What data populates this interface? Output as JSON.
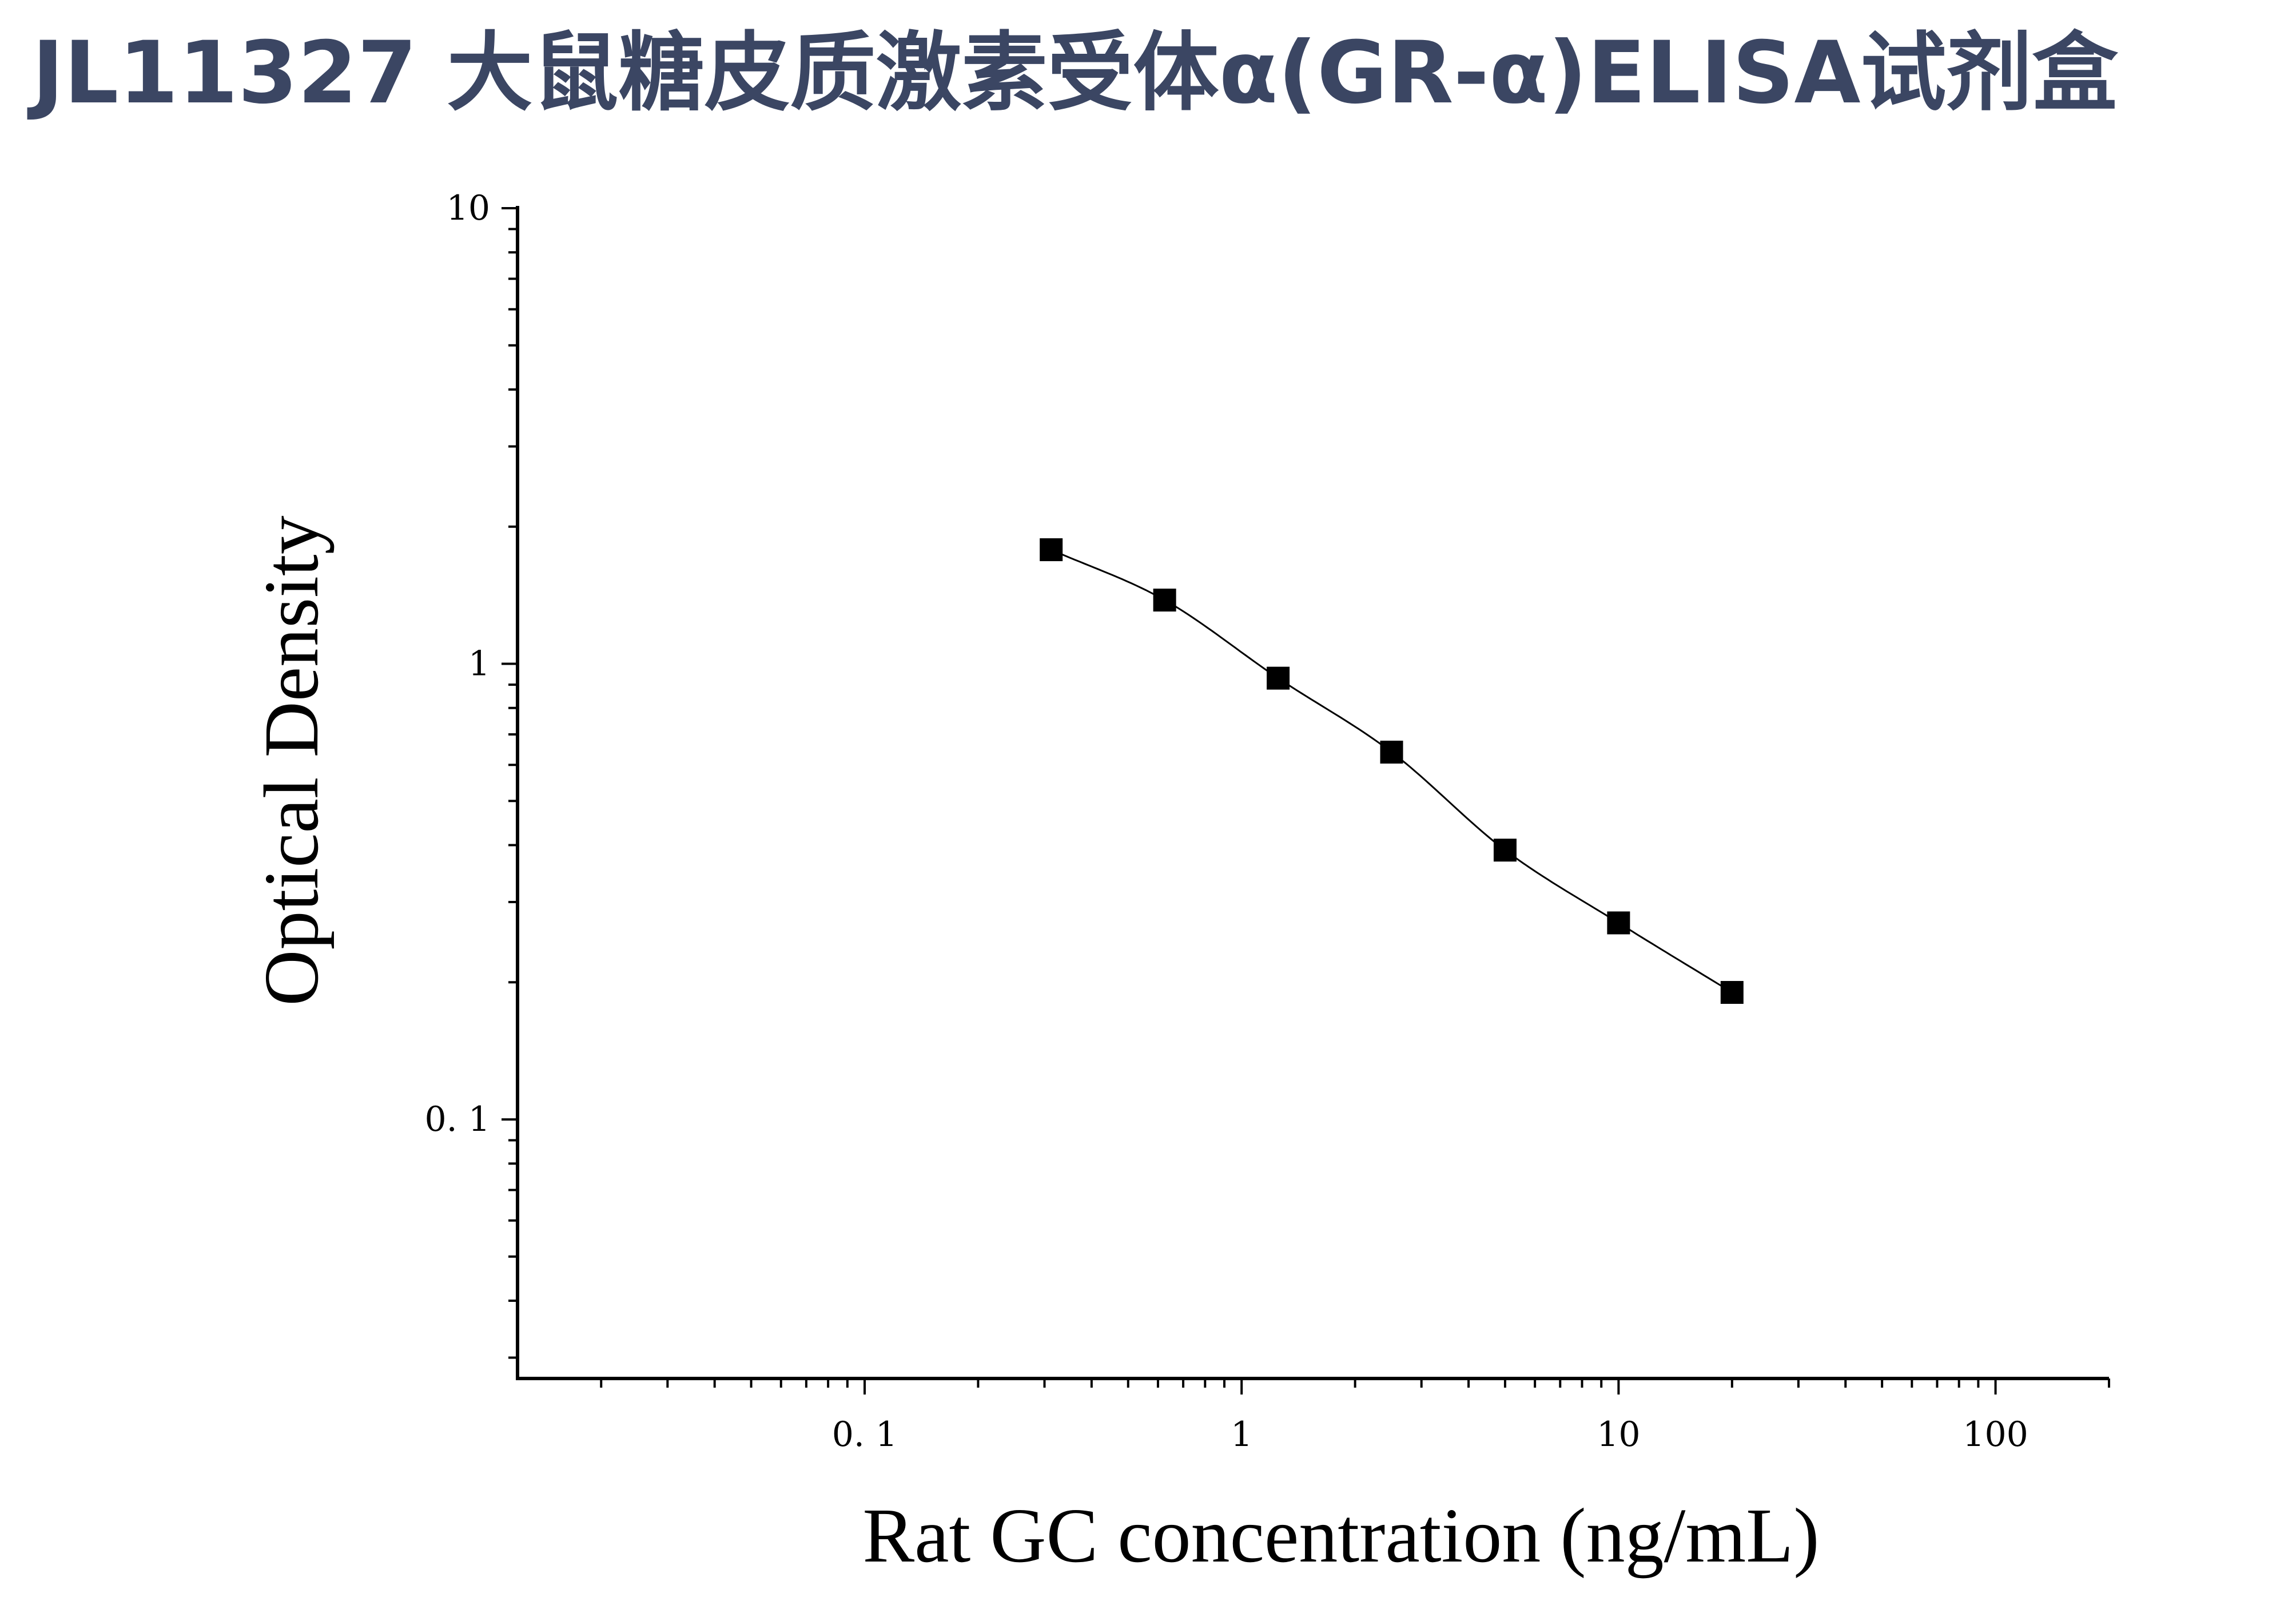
{
  "title": "JL11327 大鼠糖皮质激素受体α(GR-α)ELISA试剂盒",
  "chart_data": {
    "type": "scatter",
    "title": "",
    "xlabel": "Rat GC concentration (ng/mL)",
    "ylabel": "Optical Density",
    "x_scale": "log",
    "y_scale": "log",
    "xlim": [
      0.012,
      200
    ],
    "ylim": [
      0.027,
      10
    ],
    "x_ticks": [
      0.1,
      1,
      10,
      100
    ],
    "x_tick_labels": [
      "0. 1",
      "1",
      "10",
      "100"
    ],
    "y_ticks": [
      0.1,
      1,
      10
    ],
    "y_tick_labels": [
      "0. 1",
      "1",
      "10"
    ],
    "grid": false,
    "fit_curve": true,
    "marker": "square",
    "color": "#000000",
    "series": [
      {
        "x": [
          0.3125,
          0.625,
          1.25,
          2.5,
          5,
          10,
          20
        ],
        "y": [
          1.78,
          1.38,
          0.93,
          0.64,
          0.39,
          0.27,
          0.19
        ]
      }
    ]
  }
}
